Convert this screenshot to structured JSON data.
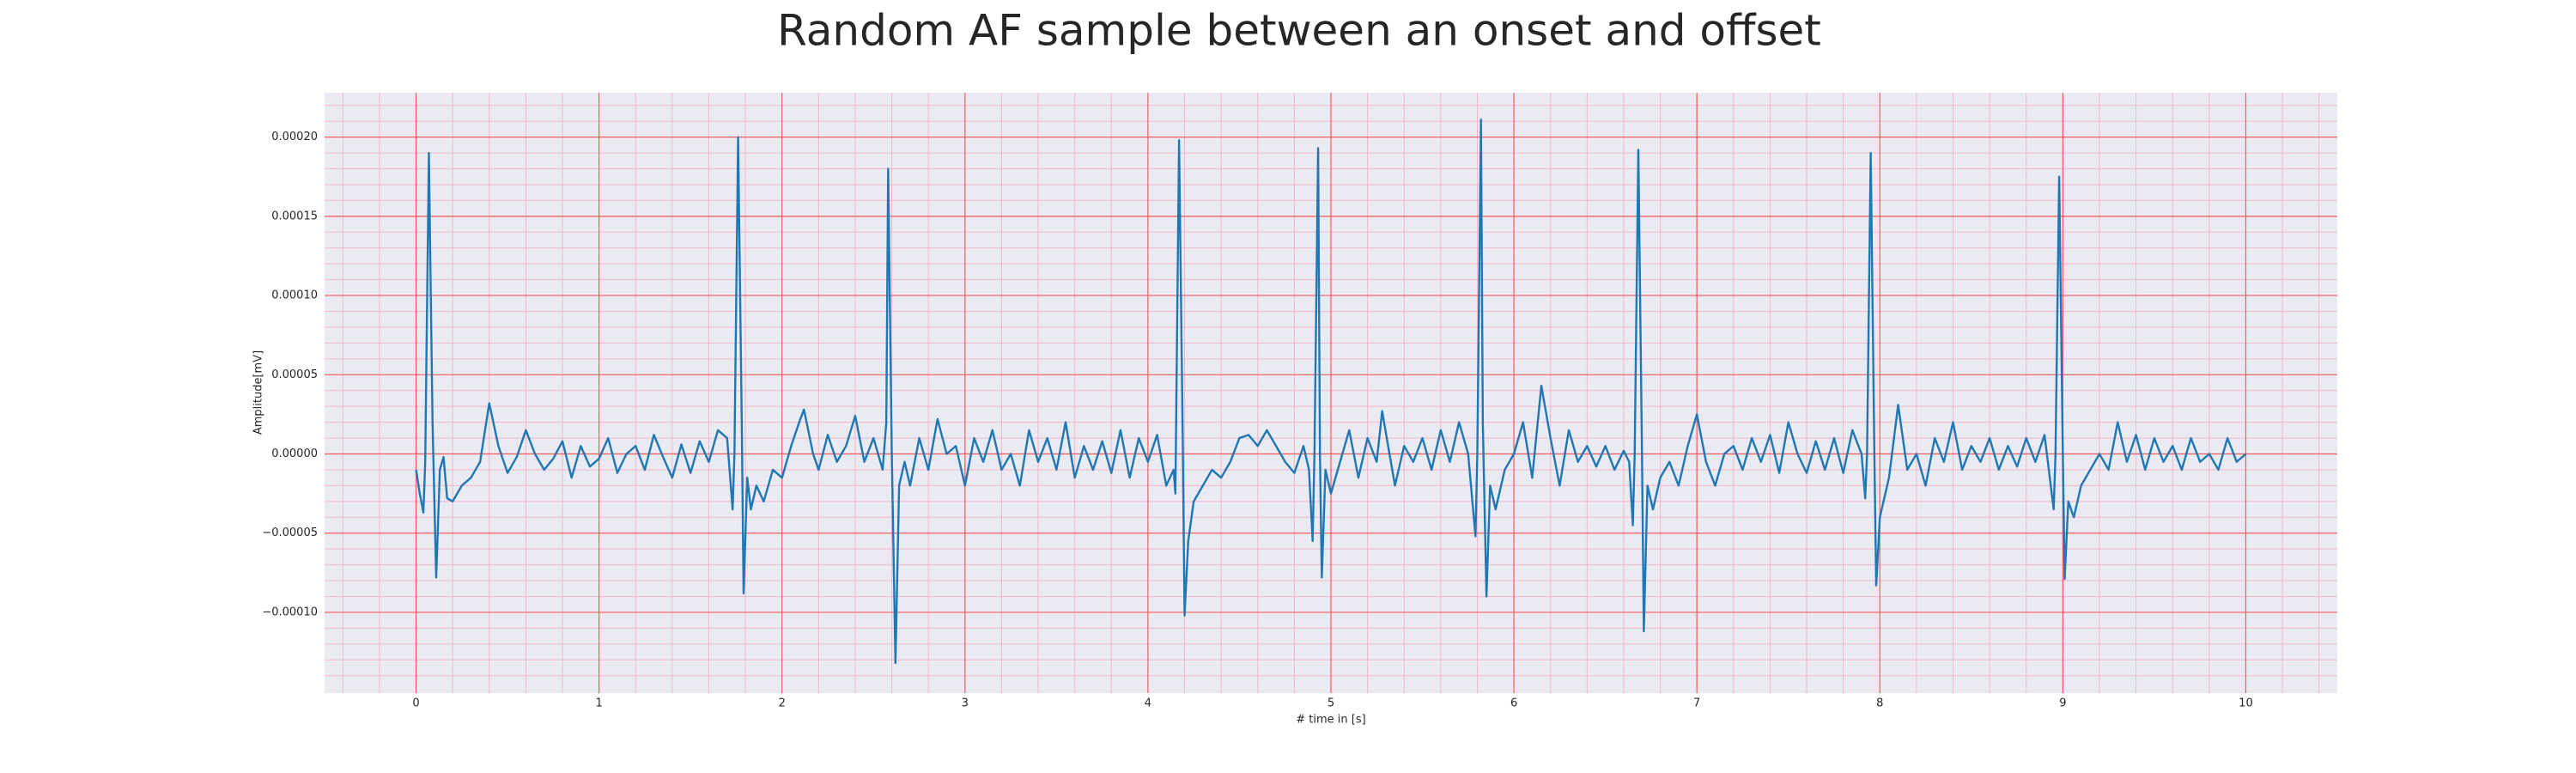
{
  "chart_data": {
    "type": "line",
    "title": "Random AF sample between an onset and offset",
    "xlabel": "# time in [s]",
    "ylabel": "Amplitude[mV]",
    "color": "#1f77b4",
    "grid": true,
    "minor_grid": true,
    "xlim": [
      -0.5,
      10.5
    ],
    "ylim": [
      -0.000151,
      0.000228
    ],
    "xticks": [
      0,
      1,
      2,
      3,
      4,
      5,
      6,
      7,
      8,
      9,
      10
    ],
    "yticks": [
      {
        "value": -0.0001,
        "label": "−0.00010"
      },
      {
        "value": -5e-05,
        "label": "−0.00005"
      },
      {
        "value": 0,
        "label": "0.00000"
      },
      {
        "value": 5e-05,
        "label": "0.00005"
      },
      {
        "value": 0.0001,
        "label": "0.00010"
      },
      {
        "value": 0.00015,
        "label": "0.00015"
      },
      {
        "value": 0.0002,
        "label": "0.00020"
      }
    ],
    "x": [
      0,
      0.02,
      0.04,
      0.05,
      0.07,
      0.09,
      0.11,
      0.13,
      0.15,
      0.17,
      0.2,
      0.25,
      0.3,
      0.35,
      0.4,
      0.45,
      0.5,
      0.55,
      0.6,
      0.65,
      0.7,
      0.75,
      0.8,
      0.85,
      0.9,
      0.95,
      1.0,
      1.05,
      1.1,
      1.15,
      1.2,
      1.25,
      1.3,
      1.35,
      1.4,
      1.45,
      1.5,
      1.55,
      1.6,
      1.65,
      1.7,
      1.73,
      1.74,
      1.76,
      1.78,
      1.79,
      1.81,
      1.83,
      1.86,
      1.9,
      1.95,
      2.0,
      2.05,
      2.1,
      2.12,
      2.17,
      2.2,
      2.25,
      2.3,
      2.35,
      2.4,
      2.45,
      2.5,
      2.55,
      2.57,
      2.58,
      2.6,
      2.62,
      2.64,
      2.67,
      2.7,
      2.75,
      2.8,
      2.85,
      2.9,
      2.95,
      3.0,
      3.05,
      3.1,
      3.15,
      3.2,
      3.25,
      3.3,
      3.35,
      3.4,
      3.45,
      3.5,
      3.55,
      3.6,
      3.65,
      3.7,
      3.75,
      3.8,
      3.85,
      3.9,
      3.95,
      4.0,
      4.05,
      4.1,
      4.14,
      4.15,
      4.17,
      4.19,
      4.2,
      4.22,
      4.25,
      4.3,
      4.35,
      4.4,
      4.45,
      4.5,
      4.55,
      4.6,
      4.65,
      4.7,
      4.75,
      4.8,
      4.85,
      4.88,
      4.9,
      4.91,
      4.93,
      4.94,
      4.95,
      4.97,
      5.0,
      5.05,
      5.1,
      5.15,
      5.2,
      5.25,
      5.28,
      5.32,
      5.35,
      5.4,
      5.45,
      5.5,
      5.55,
      5.6,
      5.65,
      5.7,
      5.75,
      5.79,
      5.8,
      5.82,
      5.83,
      5.85,
      5.87,
      5.9,
      5.95,
      6.0,
      6.05,
      6.1,
      6.15,
      6.2,
      6.25,
      6.3,
      6.35,
      6.4,
      6.45,
      6.5,
      6.55,
      6.6,
      6.63,
      6.65,
      6.66,
      6.68,
      6.7,
      6.71,
      6.73,
      6.76,
      6.8,
      6.85,
      6.9,
      6.95,
      7.0,
      7.05,
      7.1,
      7.15,
      7.2,
      7.25,
      7.3,
      7.35,
      7.4,
      7.45,
      7.5,
      7.55,
      7.6,
      7.65,
      7.7,
      7.75,
      7.8,
      7.85,
      7.9,
      7.92,
      7.93,
      7.95,
      7.97,
      7.98,
      8.0,
      8.05,
      8.1,
      8.15,
      8.2,
      8.25,
      8.3,
      8.35,
      8.4,
      8.45,
      8.5,
      8.55,
      8.6,
      8.65,
      8.7,
      8.75,
      8.8,
      8.85,
      8.9,
      8.95,
      8.96,
      8.98,
      9.0,
      9.01,
      9.03,
      9.06,
      9.1,
      9.15,
      9.2,
      9.25,
      9.3,
      9.35,
      9.4,
      9.45,
      9.5,
      9.55,
      9.6,
      9.65,
      9.7,
      9.75,
      9.8,
      9.85,
      9.9,
      9.95,
      10.0
    ],
    "values": [
      -1e-05,
      -2.5e-05,
      -3.7e-05,
      -5e-06,
      0.00019,
      2e-05,
      -7.8e-05,
      -1e-05,
      -2e-06,
      -2.8e-05,
      -3e-05,
      -2e-05,
      -1.5e-05,
      -5e-06,
      3.2e-05,
      5e-06,
      -1.2e-05,
      -2e-06,
      1.5e-05,
      0,
      -1e-05,
      -3e-06,
      8e-06,
      -1.5e-05,
      5e-06,
      -8e-06,
      -3e-06,
      1e-05,
      -1.2e-05,
      0,
      5e-06,
      -1e-05,
      1.2e-05,
      -2e-06,
      -1.5e-05,
      6e-06,
      -1.2e-05,
      8e-06,
      -5e-06,
      1.5e-05,
      1e-05,
      -3.5e-05,
      0,
      0.0002,
      2e-05,
      -8.8e-05,
      -1.5e-05,
      -3.5e-05,
      -2e-05,
      -3e-05,
      -1e-05,
      -1.5e-05,
      5e-06,
      2.2e-05,
      2.8e-05,
      0,
      -1e-05,
      1.2e-05,
      -5e-06,
      5e-06,
      2.4e-05,
      -5e-06,
      1e-05,
      -1e-05,
      2e-05,
      0.00018,
      0,
      -0.000132,
      -2e-05,
      -5e-06,
      -2e-05,
      1e-05,
      -1e-05,
      2.2e-05,
      0,
      5e-06,
      -2e-05,
      1e-05,
      -5e-06,
      1.5e-05,
      -1e-05,
      0,
      -2e-05,
      1.5e-05,
      -5e-06,
      1e-05,
      -1e-05,
      2e-05,
      -1.5e-05,
      5e-06,
      -1e-05,
      8e-06,
      -1.2e-05,
      1.5e-05,
      -1.5e-05,
      1e-05,
      -5e-06,
      1.2e-05,
      -2e-05,
      -1e-05,
      -2.5e-05,
      0.000198,
      1e-05,
      -0.000102,
      -5.5e-05,
      -3e-05,
      -2e-05,
      -1e-05,
      -1.5e-05,
      -5e-06,
      1e-05,
      1.2e-05,
      5e-06,
      1.5e-05,
      5e-06,
      -5e-06,
      -1.2e-05,
      5e-06,
      -1e-05,
      -5.5e-05,
      0,
      0.000193,
      0,
      -7.8e-05,
      -1e-05,
      -2.5e-05,
      -5e-06,
      1.5e-05,
      -1.5e-05,
      1e-05,
      -5e-06,
      2.7e-05,
      0,
      -2e-05,
      5e-06,
      -5e-06,
      1e-05,
      -1e-05,
      1.5e-05,
      -5e-06,
      2e-05,
      0,
      -5.2e-05,
      0,
      0.000211,
      2e-05,
      -9e-05,
      -2e-05,
      -3.5e-05,
      -1e-05,
      0,
      2e-05,
      -1.5e-05,
      4.3e-05,
      1e-05,
      -2e-05,
      1.5e-05,
      -5e-06,
      5e-06,
      -8e-06,
      5e-06,
      -1e-05,
      2e-06,
      -5e-06,
      -4.5e-05,
      0,
      0.000192,
      0,
      -0.000112,
      -2e-05,
      -3.5e-05,
      -1.5e-05,
      -5e-06,
      -2e-05,
      5e-06,
      2.5e-05,
      -5e-06,
      -2e-05,
      0,
      5e-06,
      -1e-05,
      1e-05,
      -5e-06,
      1.2e-05,
      -1.2e-05,
      2e-05,
      0,
      -1.2e-05,
      8e-06,
      -1e-05,
      1e-05,
      -1.2e-05,
      1.5e-05,
      0,
      -2.8e-05,
      0,
      0.00019,
      0,
      -8.3e-05,
      -4e-05,
      -1.5e-05,
      3.1e-05,
      -1e-05,
      0,
      -2e-05,
      1e-05,
      -5e-06,
      2e-05,
      -1e-05,
      5e-06,
      -5e-06,
      1e-05,
      -1e-05,
      5e-06,
      -8e-06,
      1e-05,
      -5e-06,
      1.2e-05,
      -3.5e-05,
      0,
      0.000175,
      0,
      -7.9e-05,
      -3e-05,
      -4e-05,
      -2e-05,
      -1e-05,
      0,
      -1e-05,
      2e-05,
      -5e-06,
      1.2e-05,
      -1e-05,
      1e-05,
      -5e-06,
      5e-06,
      -1e-05,
      1e-05,
      -5e-06,
      0,
      -1e-05,
      1e-05,
      -5e-06,
      0
    ]
  }
}
